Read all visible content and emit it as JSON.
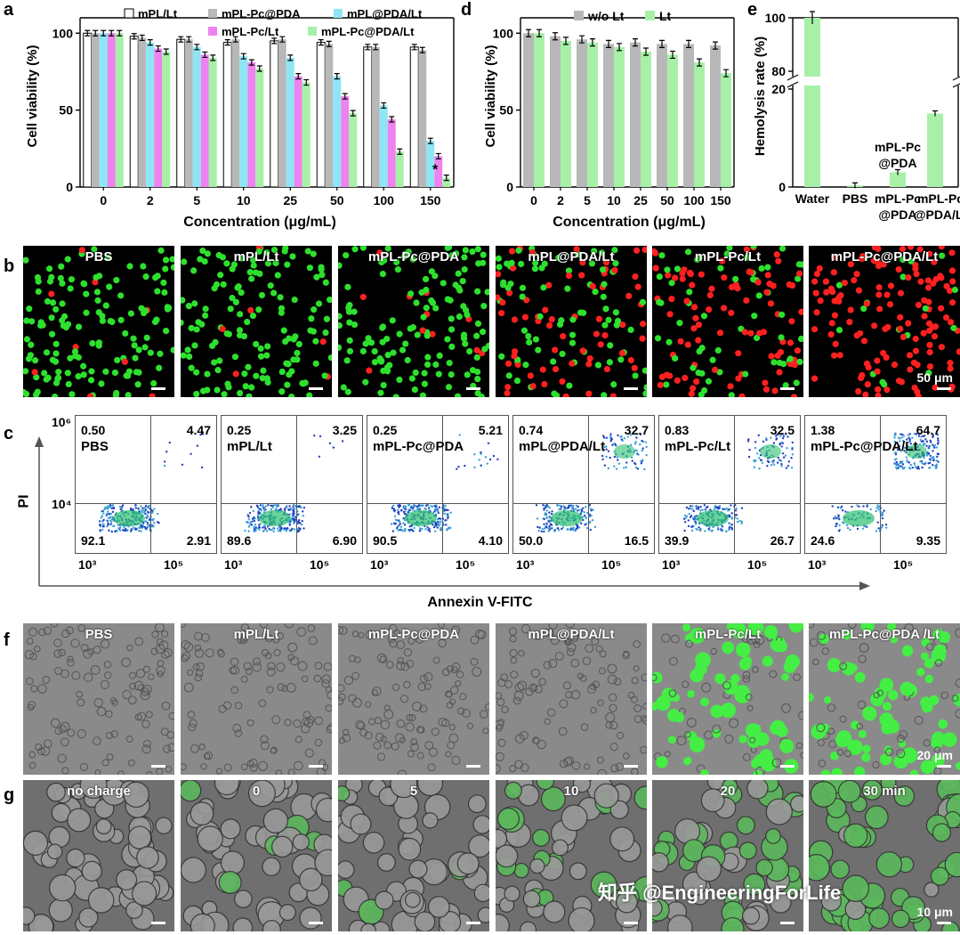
{
  "panel_letters": {
    "a": "a",
    "b": "b",
    "c": "c",
    "d": "d",
    "e": "e",
    "f": "f",
    "g": "g"
  },
  "chart_data": [
    {
      "panel": "a",
      "type": "bar",
      "ylabel": "Cell viability (%)",
      "xlabel": "Concentration (μg/mL)",
      "categories": [
        "0",
        "2",
        "5",
        "10",
        "25",
        "50",
        "100",
        "150"
      ],
      "yticks": [
        0,
        50,
        100
      ],
      "ylim": [
        0,
        110
      ],
      "series": [
        {
          "name": "mPL/Lt",
          "color": "#ffffff",
          "values": [
            100,
            98,
            96,
            94,
            95,
            94,
            91,
            91
          ]
        },
        {
          "name": "mPL-Pc@PDA",
          "color": "#b8b8b8",
          "values": [
            100,
            97,
            96,
            96,
            96,
            93,
            91,
            89
          ]
        },
        {
          "name": "mPL@PDA/Lt",
          "color": "#8ee6f5",
          "values": [
            100,
            94,
            91,
            85,
            84,
            72,
            53,
            30
          ]
        },
        {
          "name": "mPL-Pc/Lt",
          "color": "#ee82ee",
          "values": [
            100,
            90,
            86,
            81,
            72,
            59,
            44,
            20
          ]
        },
        {
          "name": "mPL-Pc@PDA/Lt",
          "color": "#a8f0a8",
          "values": [
            100,
            88,
            84,
            77,
            68,
            48,
            23,
            6
          ]
        }
      ],
      "annotations": [
        "*"
      ]
    },
    {
      "panel": "d",
      "type": "bar",
      "ylabel": "Cell viability (%)",
      "xlabel": "Concentration (μg/mL)",
      "categories": [
        "0",
        "2",
        "5",
        "10",
        "25",
        "50",
        "100",
        "150"
      ],
      "yticks": [
        0,
        50,
        100
      ],
      "ylim": [
        0,
        110
      ],
      "series": [
        {
          "name": "w/o Lt",
          "color": "#b8b8b8",
          "values": [
            100,
            98,
            96,
            93,
            94,
            93,
            93,
            92
          ]
        },
        {
          "name": "Lt",
          "color": "#a8f0a8",
          "values": [
            100,
            95,
            94,
            91,
            88,
            86,
            81,
            74
          ]
        }
      ]
    },
    {
      "panel": "e",
      "type": "bar",
      "ylabel": "Hemolysis rate (%)",
      "categories": [
        "Water",
        "PBS",
        "mPL-Pc\n@PDA",
        "mPL-Pc\n@PDA/Lt"
      ],
      "values": [
        100,
        0.3,
        3,
        15
      ],
      "yticks": [
        0,
        20,
        80,
        100
      ],
      "axis_break": [
        20,
        80
      ],
      "color": "#a8f0a8",
      "inline_labels": [
        "mPL-Pc",
        "@PDA"
      ]
    }
  ],
  "panel_b": {
    "titles": [
      "PBS",
      "mPL/Lt",
      "mPL-Pc@PDA",
      "mPL@PDA/Lt",
      "mPL-Pc/Lt",
      "mPL-Pc@PDA/Lt"
    ],
    "scale": "50 μm"
  },
  "panel_c": {
    "y_axis_label": "PI",
    "x_axis_label": "Annexin V-FITC",
    "y_top": "10⁶",
    "y_mid": "10⁴",
    "x_ticks": [
      "10³",
      "10⁵"
    ],
    "plots": [
      {
        "name": "PBS",
        "ul": "0.50",
        "ur": "4.47",
        "ll": "92.1",
        "lr": "2.91"
      },
      {
        "name": "mPL/Lt",
        "ul": "0.25",
        "ur": "3.25",
        "ll": "89.6",
        "lr": "6.90"
      },
      {
        "name": "mPL-Pc@PDA",
        "ul": "0.25",
        "ur": "5.21",
        "ll": "90.5",
        "lr": "4.10"
      },
      {
        "name": "mPL@PDA/Lt",
        "ul": "0.74",
        "ur": "32.7",
        "ll": "50.0",
        "lr": "16.5"
      },
      {
        "name": "mPL-Pc/Lt",
        "ul": "0.83",
        "ur": "32.5",
        "ll": "39.9",
        "lr": "26.7"
      },
      {
        "name": "mPL-Pc@PDA/Lt",
        "ul": "1.38",
        "ur": "64.7",
        "ll": "24.6",
        "lr": "9.35"
      }
    ]
  },
  "panel_f": {
    "titles": [
      "PBS",
      "mPL/Lt",
      "mPL-Pc@PDA",
      "mPL@PDA/Lt",
      "mPL-Pc/Lt",
      "mPL-Pc@PDA /Lt"
    ],
    "scale": "20 μm"
  },
  "panel_g": {
    "titles": [
      "no charge",
      "0",
      "5",
      "10",
      "20",
      "30 min"
    ],
    "scale": "10 μm"
  },
  "watermark": "知乎 @EngineeringForLife"
}
